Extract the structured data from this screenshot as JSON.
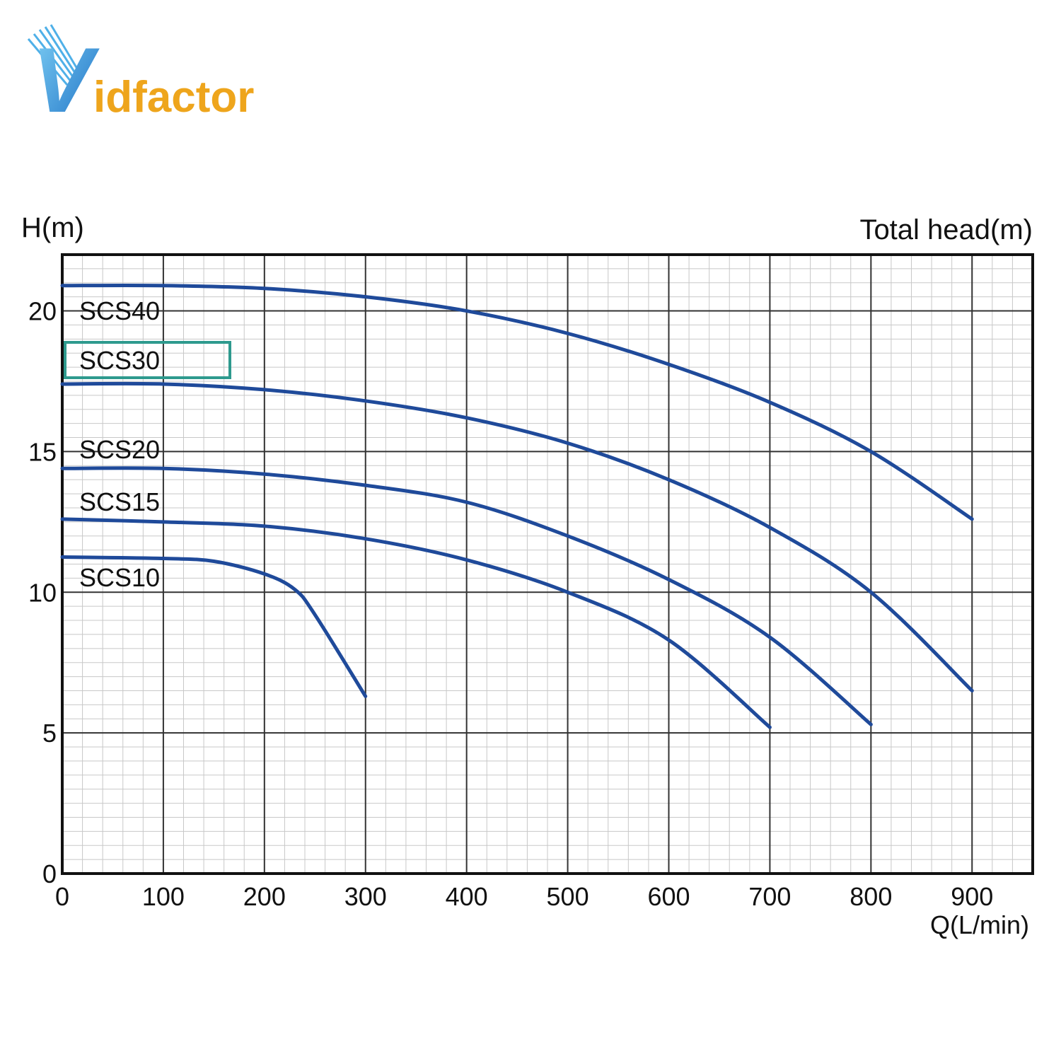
{
  "logo": {
    "initial": "V",
    "rest": "idfactor"
  },
  "chart_data": {
    "type": "line",
    "title": "Total head(m)",
    "y_label": "H(m)",
    "x_label": "Q(L/min)",
    "xlim": [
      0,
      960
    ],
    "ylim": [
      0,
      22
    ],
    "xticks": [
      0,
      100,
      200,
      300,
      400,
      500,
      600,
      700,
      800,
      900
    ],
    "yticks": [
      0,
      5,
      10,
      15,
      20
    ],
    "grid": true,
    "minor_grid": true,
    "highlight_color": "#2e9a8e",
    "series": [
      {
        "name": "SCS40",
        "color": "#1f4a9a",
        "x": [
          0,
          100,
          200,
          300,
          400,
          500,
          600,
          700,
          800,
          900
        ],
        "values": [
          20.9,
          20.9,
          20.8,
          20.5,
          20.0,
          19.2,
          18.1,
          16.75,
          15.0,
          12.6
        ]
      },
      {
        "name": "SCS30",
        "color": "#1f4a9a",
        "highlight": true,
        "x": [
          0,
          100,
          200,
          300,
          400,
          500,
          600,
          700,
          800,
          900
        ],
        "values": [
          17.4,
          17.4,
          17.2,
          16.8,
          16.2,
          15.3,
          14.0,
          12.3,
          10.0,
          6.5
        ]
      },
      {
        "name": "SCS20",
        "color": "#1f4a9a",
        "x": [
          0,
          100,
          200,
          300,
          400,
          500,
          600,
          700,
          800
        ],
        "values": [
          14.4,
          14.4,
          14.2,
          13.8,
          13.2,
          12.0,
          10.45,
          8.4,
          5.3
        ]
      },
      {
        "name": "SCS15",
        "color": "#1f4a9a",
        "x": [
          0,
          100,
          200,
          300,
          400,
          500,
          600,
          700
        ],
        "values": [
          12.6,
          12.5,
          12.35,
          11.9,
          11.15,
          10.0,
          8.3,
          5.2
        ]
      },
      {
        "name": "SCS10",
        "color": "#1f4a9a",
        "x": [
          0,
          100,
          150,
          200,
          230,
          250,
          300
        ],
        "values": [
          11.25,
          11.2,
          11.1,
          10.65,
          10.1,
          9.2,
          6.3
        ]
      }
    ]
  }
}
